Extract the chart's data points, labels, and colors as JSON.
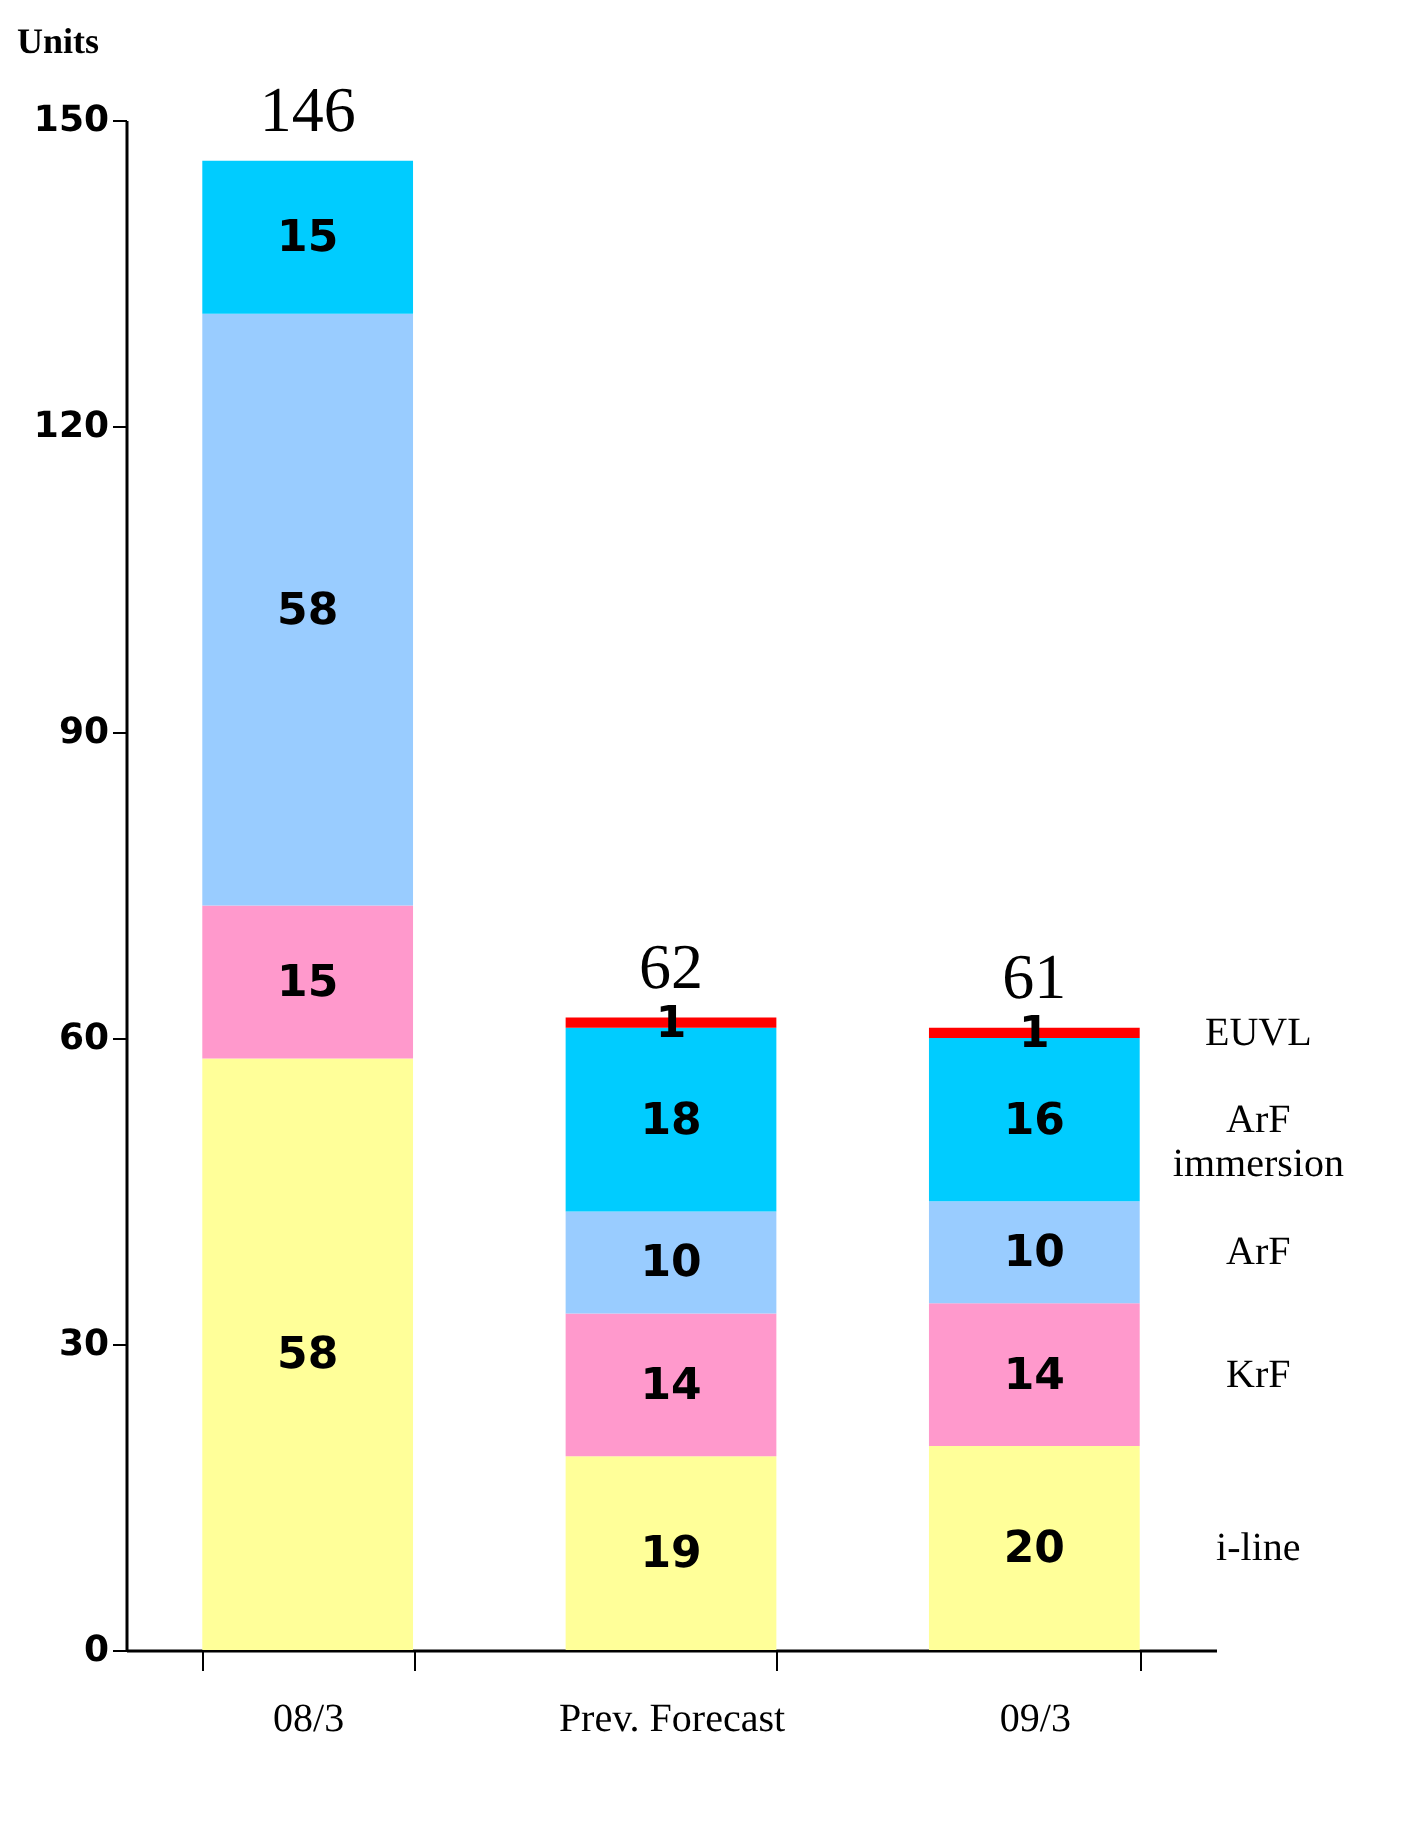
{
  "chart_data": {
    "type": "bar",
    "stacked": true,
    "ylabel": "Units",
    "categories": [
      "08/3",
      "Prev. Forecast",
      "09/3"
    ],
    "series": [
      {
        "name": "i-line",
        "color": "#ffff99",
        "values": [
          58,
          19,
          20
        ]
      },
      {
        "name": "KrF",
        "color": "#ff99cc",
        "values": [
          15,
          14,
          14
        ]
      },
      {
        "name": "ArF",
        "color": "#99ccff",
        "values": [
          58,
          10,
          10
        ]
      },
      {
        "name": "ArF immersion",
        "color": "#00ccff",
        "values": [
          15,
          18,
          16
        ]
      },
      {
        "name": "EUVL",
        "color": "#ff0000",
        "values": [
          null,
          1,
          1
        ]
      }
    ],
    "ylim": [
      0,
      150
    ],
    "yticks": [
      0,
      30,
      60,
      90,
      120,
      150
    ],
    "data_labels": true,
    "totals": [
      "146",
      "62",
      "61"
    ],
    "grid": false,
    "legend": false
  }
}
